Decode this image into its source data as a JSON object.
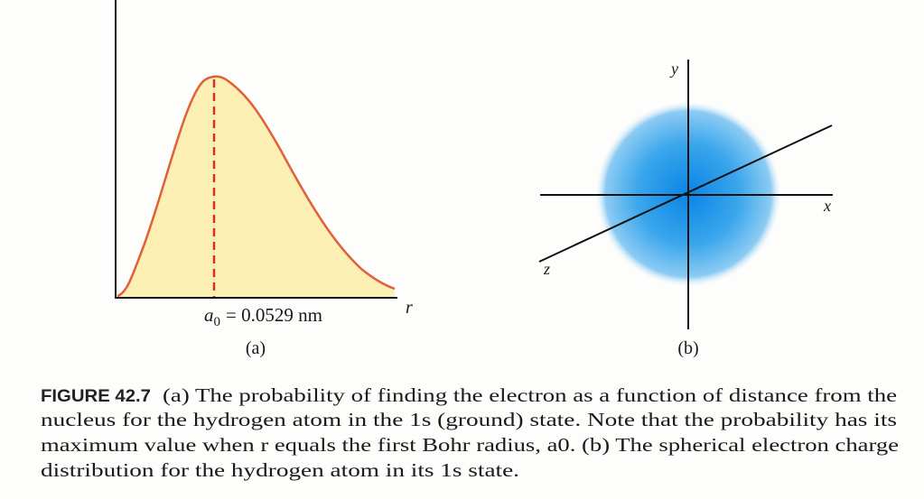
{
  "figure": {
    "panel_a": {
      "peak_label": {
        "symbol": "a",
        "subscript": "0",
        "text": "= 0.0529 nm"
      },
      "axis_label": "r",
      "caption_tag": "(a)"
    },
    "panel_b": {
      "axis_labels": {
        "x": "x",
        "y": "y",
        "z": "z"
      },
      "caption_tag": "(b)"
    },
    "caption": {
      "label": "FIGURE 42.7",
      "lines": [
        "(a) The probability of finding the electron as a function of distance from the",
        "nucleus for the hydrogen atom in the 1s (ground) state. Note that the probability has its",
        "maximum value when r equals the first Bohr radius, a0. (b) The spherical electron charge",
        "distribution for the hydrogen atom in its 1s state."
      ]
    }
  }
}
